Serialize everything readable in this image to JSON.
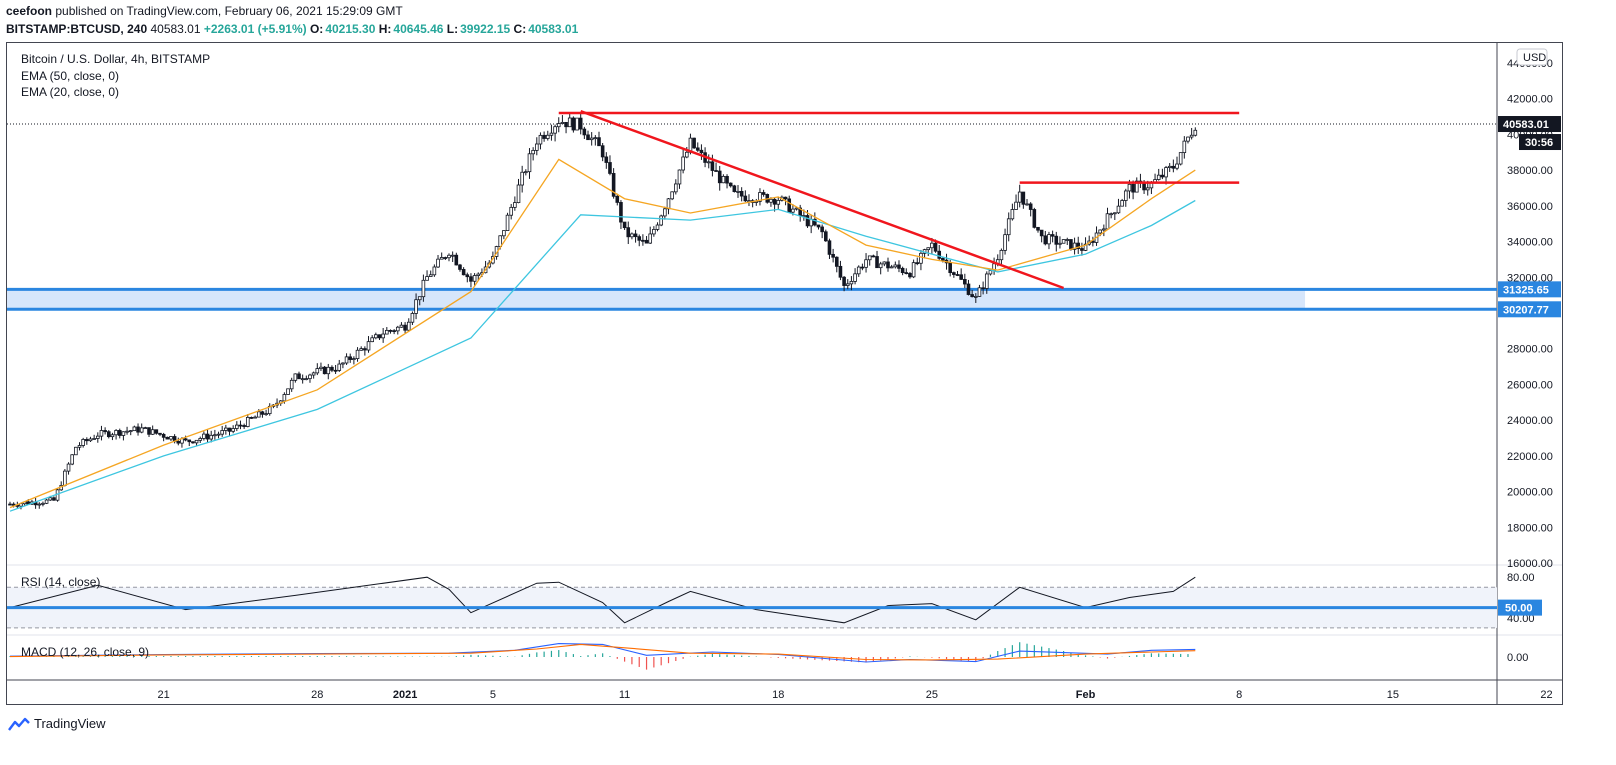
{
  "header": {
    "author": "ceefoon",
    "published": "published on TradingView.com, February 06, 2021 15:29:09 GMT",
    "symbol": "BITSTAMP:BTCUSD, 240",
    "last": "40583.01",
    "change": "+2263.01 (+5.91%)",
    "o_label": "O:",
    "o": "40215.30",
    "h_label": "H:",
    "h": "40645.46",
    "l_label": "L:",
    "l": "39922.15",
    "c_label": "C:",
    "c": "40583.01"
  },
  "legend": {
    "title": "Bitcoin / U.S. Dollar, 4h, BITSTAMP",
    "ema50": "EMA (50, close, 0)",
    "ema20": "EMA (20, close, 0)",
    "rsi": "RSI (14, close)",
    "macd": "MACD (12, 26, close, 9)"
  },
  "currency": "USD",
  "brand": "TradingView",
  "colors": {
    "up": "#26a69a",
    "candle": "#131722",
    "ema20": "#f5a623",
    "ema50": "#3ec6e0",
    "trend": "#f0161d",
    "zone": "#2a86e0",
    "zone_fill": "#d6e6fb",
    "rsi": "#131722",
    "macd": "#2962ff",
    "signal": "#ff6d00"
  },
  "chart_data": [
    {
      "type": "candlestick",
      "title": "Bitcoin / U.S. Dollar, 4h, BITSTAMP",
      "xlabel": "",
      "ylabel": "USD",
      "ylim": [
        16000,
        44000
      ],
      "x_ticks": [
        "21",
        "28",
        "2021",
        "5",
        "11",
        "18",
        "25",
        "Feb",
        "8",
        "15",
        "22"
      ],
      "y_ticks": [
        "44000.00",
        "42000.00",
        "40000.00",
        "38000.00",
        "36000.00",
        "34000.00",
        "32000.00",
        "30000.00",
        "28000.00",
        "26000.00",
        "24000.00",
        "22000.00",
        "20000.00",
        "18000.00",
        "16000.00"
      ],
      "close_path": {
        "dates": [
          "2020-12-14",
          "2020-12-16",
          "2020-12-17",
          "2020-12-18",
          "2020-12-20",
          "2020-12-22",
          "2020-12-24",
          "2020-12-26",
          "2020-12-27",
          "2020-12-29",
          "2020-12-31",
          "2021-01-01",
          "2021-01-02",
          "2021-01-03",
          "2021-01-04",
          "2021-01-05",
          "2021-01-06",
          "2021-01-07",
          "2021-01-08",
          "2021-01-09",
          "2021-01-10",
          "2021-01-11",
          "2021-01-12",
          "2021-01-13",
          "2021-01-14",
          "2021-01-16",
          "2021-01-18",
          "2021-01-20",
          "2021-01-21",
          "2021-01-22",
          "2021-01-24",
          "2021-01-25",
          "2021-01-27",
          "2021-01-28",
          "2021-01-29",
          "2021-01-30",
          "2021-02-01",
          "2021-02-03",
          "2021-02-04",
          "2021-02-05",
          "2021-02-06"
        ],
        "values": [
          19300,
          19500,
          22500,
          23200,
          23500,
          22800,
          23400,
          24700,
          26400,
          27000,
          28900,
          29300,
          32000,
          33500,
          31800,
          33000,
          36500,
          39700,
          40800,
          40500,
          39000,
          34500,
          33800,
          36500,
          39500,
          36600,
          36400,
          34500,
          31500,
          33000,
          32300,
          33800,
          30800,
          33200,
          36800,
          34200,
          33600,
          37000,
          37200,
          38200,
          40583
        ]
      },
      "ema20": {
        "dates": [
          "2020-12-14",
          "2020-12-21",
          "2020-12-28",
          "2021-01-04",
          "2021-01-08",
          "2021-01-11",
          "2021-01-14",
          "2021-01-18",
          "2021-01-22",
          "2021-01-25",
          "2021-01-28",
          "2021-02-01",
          "2021-02-04",
          "2021-02-06"
        ],
        "values": [
          19100,
          22600,
          25700,
          31200,
          38600,
          36400,
          35600,
          36500,
          33800,
          33000,
          32400,
          33800,
          36400,
          38000
        ]
      },
      "ema50": {
        "dates": [
          "2020-12-14",
          "2020-12-21",
          "2020-12-28",
          "2021-01-04",
          "2021-01-09",
          "2021-01-14",
          "2021-01-18",
          "2021-01-22",
          "2021-01-25",
          "2021-01-28",
          "2021-02-01",
          "2021-02-04",
          "2021-02-06"
        ],
        "values": [
          18900,
          22000,
          24600,
          28600,
          35500,
          35200,
          35800,
          34300,
          33300,
          32300,
          33300,
          34900,
          36300
        ]
      },
      "resistance": {
        "from": "2021-01-08",
        "to": "2021-02-08",
        "value": 41200
      },
      "downtrend": {
        "from": [
          "2021-01-09",
          41300
        ],
        "to": [
          "2021-01-31",
          31400
        ]
      },
      "local_resistance": {
        "from": "2021-01-29",
        "to": "2021-02-08",
        "value": 37300
      },
      "support_zone": {
        "from": "2020-12-14",
        "to": "2021-02-11",
        "top": 31325.65,
        "bottom": 30207.77
      },
      "labels": {
        "last_price": "40583.01",
        "countdown": "30:56",
        "zone_top": "31325.65",
        "zone_bottom": "30207.77"
      }
    },
    {
      "type": "line",
      "title": "RSI (14, close)",
      "ylim": [
        25,
        90
      ],
      "y_ticks": [
        "80.00",
        "40.00"
      ],
      "level_label": "50.00",
      "levels": [
        70,
        50,
        30
      ],
      "dates": [
        "2020-12-14",
        "2020-12-18",
        "2020-12-22",
        "2020-12-27",
        "2021-01-02",
        "2021-01-03",
        "2021-01-04",
        "2021-01-07",
        "2021-01-08",
        "2021-01-10",
        "2021-01-11",
        "2021-01-13",
        "2021-01-14",
        "2021-01-17",
        "2021-01-21",
        "2021-01-23",
        "2021-01-25",
        "2021-01-27",
        "2021-01-29",
        "2021-02-01",
        "2021-02-03",
        "2021-02-05",
        "2021-02-06"
      ],
      "values": [
        50,
        72,
        48,
        62,
        80,
        68,
        45,
        74,
        75,
        55,
        35,
        56,
        66,
        48,
        35,
        52,
        54,
        38,
        70,
        50,
        60,
        66,
        80
      ]
    },
    {
      "type": "line",
      "title": "MACD (12, 26, close, 9)",
      "y_ticks": [
        "0.00"
      ],
      "macd": {
        "dates": [
          "2020-12-14",
          "2020-12-21",
          "2020-12-28",
          "2021-01-03",
          "2021-01-06",
          "2021-01-08",
          "2021-01-10",
          "2021-01-12",
          "2021-01-15",
          "2021-01-18",
          "2021-01-22",
          "2021-01-24",
          "2021-01-27",
          "2021-01-29",
          "2021-02-02",
          "2021-02-04",
          "2021-02-06"
        ],
        "values": [
          200,
          600,
          800,
          900,
          1600,
          3200,
          3000,
          400,
          1200,
          600,
          -1200,
          -600,
          -1100,
          1400,
          700,
          1600,
          1800
        ]
      },
      "signal": {
        "dates": [
          "2020-12-14",
          "2020-12-21",
          "2020-12-28",
          "2021-01-04",
          "2021-01-07",
          "2021-01-09",
          "2021-01-11",
          "2021-01-14",
          "2021-01-18",
          "2021-01-22",
          "2021-01-25",
          "2021-01-28",
          "2021-02-01",
          "2021-02-04",
          "2021-02-06"
        ],
        "values": [
          100,
          500,
          700,
          900,
          1900,
          3000,
          2200,
          900,
          700,
          -600,
          -700,
          -500,
          700,
          1200,
          1500
        ]
      }
    }
  ]
}
